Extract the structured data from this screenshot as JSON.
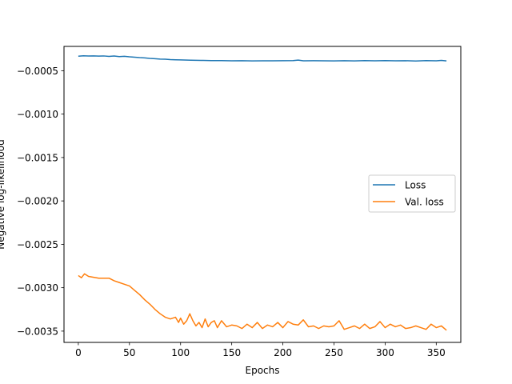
{
  "chart_data": {
    "type": "line",
    "title": "",
    "xlabel": "Epochs",
    "ylabel": "Negative log-likelihood",
    "xlim": [
      -14,
      374
    ],
    "ylim": [
      -0.00363,
      -0.00022
    ],
    "xticks": [
      0,
      50,
      100,
      150,
      200,
      250,
      300,
      350
    ],
    "xtick_labels": [
      "0",
      "50",
      "100",
      "150",
      "200",
      "250",
      "300",
      "350"
    ],
    "yticks": [
      -0.0005,
      -0.001,
      -0.0015,
      -0.002,
      -0.0025,
      -0.003,
      -0.0035
    ],
    "ytick_labels": [
      "−0.0005",
      "−0.0010",
      "−0.0015",
      "−0.0020",
      "−0.0025",
      "−0.0030",
      "−0.0035"
    ],
    "grid": false,
    "legend_position": "center-right",
    "series": [
      {
        "name": "Loss",
        "color": "#1f77b4",
        "x": [
          0,
          5,
          10,
          15,
          20,
          25,
          30,
          35,
          40,
          45,
          50,
          55,
          60,
          65,
          70,
          75,
          80,
          85,
          90,
          95,
          100,
          110,
          120,
          130,
          140,
          150,
          160,
          170,
          180,
          190,
          200,
          210,
          215,
          220,
          230,
          240,
          250,
          260,
          270,
          280,
          290,
          300,
          310,
          320,
          330,
          340,
          350,
          355,
          360
        ],
        "y": [
          -0.000333,
          -0.000328,
          -0.000331,
          -0.000329,
          -0.000332,
          -0.00033,
          -0.000335,
          -0.000331,
          -0.000338,
          -0.000334,
          -0.00034,
          -0.000344,
          -0.000349,
          -0.000352,
          -0.000358,
          -0.000362,
          -0.000366,
          -0.000368,
          -0.000372,
          -0.000374,
          -0.000376,
          -0.000379,
          -0.000381,
          -0.000383,
          -0.000384,
          -0.000386,
          -0.000385,
          -0.000387,
          -0.000386,
          -0.000386,
          -0.000385,
          -0.000384,
          -0.000378,
          -0.000386,
          -0.000385,
          -0.000386,
          -0.000387,
          -0.000385,
          -0.000387,
          -0.000384,
          -0.000386,
          -0.000383,
          -0.000386,
          -0.000385,
          -0.000388,
          -0.000384,
          -0.000386,
          -0.000381,
          -0.000387
        ]
      },
      {
        "name": "Val. loss",
        "color": "#ff7f0e",
        "x": [
          0,
          3,
          6,
          10,
          15,
          20,
          25,
          30,
          35,
          40,
          45,
          50,
          55,
          60,
          65,
          70,
          75,
          80,
          85,
          90,
          95,
          98,
          100,
          103,
          106,
          109,
          112,
          115,
          118,
          121,
          124,
          127,
          130,
          133,
          136,
          140,
          145,
          150,
          155,
          160,
          165,
          170,
          175,
          180,
          185,
          190,
          195,
          200,
          205,
          210,
          215,
          220,
          225,
          230,
          235,
          240,
          245,
          250,
          255,
          260,
          265,
          270,
          275,
          280,
          285,
          290,
          295,
          300,
          305,
          310,
          315,
          320,
          325,
          330,
          335,
          340,
          345,
          350,
          355,
          360
        ],
        "y": [
          -0.00286,
          -0.002885,
          -0.00284,
          -0.00287,
          -0.00288,
          -0.00289,
          -0.00289,
          -0.00289,
          -0.00292,
          -0.00294,
          -0.00296,
          -0.00298,
          -0.00303,
          -0.00308,
          -0.00314,
          -0.00319,
          -0.00325,
          -0.0033,
          -0.00334,
          -0.00336,
          -0.00334,
          -0.0034,
          -0.00335,
          -0.00342,
          -0.00338,
          -0.0033,
          -0.00338,
          -0.00344,
          -0.0034,
          -0.00346,
          -0.00336,
          -0.00345,
          -0.0034,
          -0.00338,
          -0.00346,
          -0.00338,
          -0.00345,
          -0.00343,
          -0.00344,
          -0.00347,
          -0.00342,
          -0.00346,
          -0.0034,
          -0.00347,
          -0.00343,
          -0.00345,
          -0.0034,
          -0.00346,
          -0.00339,
          -0.00342,
          -0.00343,
          -0.00337,
          -0.00345,
          -0.00344,
          -0.00347,
          -0.00344,
          -0.00345,
          -0.00344,
          -0.00338,
          -0.00348,
          -0.00346,
          -0.00344,
          -0.00347,
          -0.00342,
          -0.00347,
          -0.00345,
          -0.00339,
          -0.00346,
          -0.00342,
          -0.00345,
          -0.00343,
          -0.00347,
          -0.00346,
          -0.00344,
          -0.00346,
          -0.00348,
          -0.00342,
          -0.00346,
          -0.00344,
          -0.00349
        ]
      }
    ]
  }
}
